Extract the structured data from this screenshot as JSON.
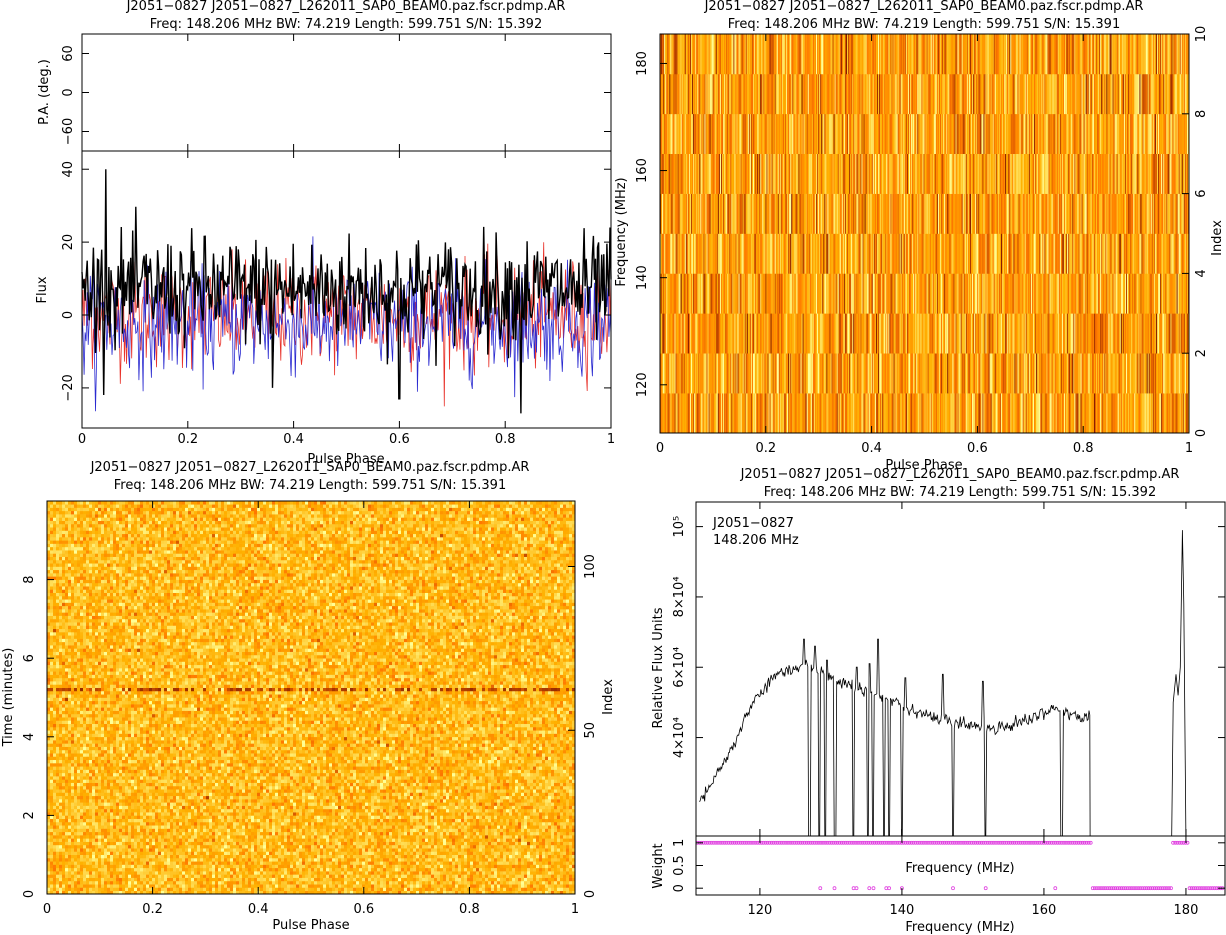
{
  "panels": {
    "profile": {
      "title1": "J2051−0827 J2051−0827_L262011_SAP0_BEAM0.paz.fscr.pdmp.AR",
      "title2": "Freq: 148.206 MHz BW: 74.219 Length: 599.751 S/N: 15.392",
      "pa_label": "P.A. (deg.)",
      "flux_label": "Flux",
      "x_label": "Pulse Phase"
    },
    "freq_phase": {
      "title1": "J2051−0827 J2051−0827_L262011_SAP0_BEAM0.paz.fscr.pdmp.AR",
      "title2": "Freq: 148.206 MHz BW: 74.219 Length: 599.751 S/N: 15.391",
      "y_label": "Frequency (MHz)",
      "y2_label": "Index",
      "x_label": "Pulse Phase"
    },
    "time_phase": {
      "title1": "J2051−0827 J2051−0827_L262011_SAP0_BEAM0.paz.fscr.pdmp.AR",
      "title2": "Freq: 148.206 MHz BW: 74.219 Length: 599.751 S/N: 15.391",
      "y_label": "Time (minutes)",
      "y2_label": "Index",
      "x_label": "Pulse Phase"
    },
    "bandpass": {
      "title1": "J2051−0827 J2051−0827_L262011_SAP0_BEAM0.paz.fscr.pdmp.AR",
      "title2": "Freq: 148.206 MHz BW: 74.219 Length: 599.751 S/N: 15.392",
      "legend1": "J2051−0827",
      "legend2": "148.206 MHz",
      "y_label": "Relative Flux Units",
      "w_label": "Weight",
      "x_label_inner": "Frequency (MHz)",
      "x_label": "Frequency (MHz)"
    }
  },
  "colors": {
    "stokes_i": "#000000",
    "stokes_l": "#e8322a",
    "stokes_v": "#2a2ad0",
    "weights": "#e040e0"
  },
  "chart_data": [
    {
      "type": "line",
      "title": "J2051−0827 J2051−0827_L262011_SAP0_BEAM0.paz.fscr.pdmp.AR",
      "subtitle": "Freq: 148.206 MHz BW: 74.219 Length: 599.751 S/N: 15.392",
      "xlabel": "Pulse Phase",
      "ylabel": "Flux",
      "xlim": [
        0,
        1
      ],
      "ylim": [
        -31,
        45
      ],
      "pa_ylim": [
        -90,
        90
      ],
      "x_ticks": [
        0,
        0.2,
        0.4,
        0.6,
        0.8,
        1
      ],
      "x_tick_labels": [
        "0",
        "0.2",
        "0.4",
        "0.6",
        "0.8",
        "1"
      ],
      "y_ticks": [
        -20,
        0,
        20,
        40
      ],
      "y_tick_labels": [
        "−20",
        "0",
        "20",
        "40"
      ],
      "pa_ticks": [
        -60,
        0,
        60
      ],
      "pa_tick_labels": [
        "−60",
        "0",
        "60"
      ],
      "n_bins": 512,
      "series": [
        {
          "key": "I",
          "color": "#000000",
          "mean": 7,
          "sd": 8,
          "peaks": [
            [
              0.045,
              40
            ],
            [
              0.83,
              -27
            ],
            [
              0.36,
              -20
            ],
            [
              0.6,
              -23
            ]
          ]
        },
        {
          "key": "L",
          "color": "#e8322a",
          "mean": 0,
          "sd": 8
        },
        {
          "key": "V",
          "color": "#2a2ad0",
          "mean": -2,
          "sd": 8
        }
      ]
    },
    {
      "type": "heatmap",
      "title": "J2051−0827 J2051−0827_L262011_SAP0_BEAM0.paz.fscr.pdmp.AR",
      "subtitle": "Freq: 148.206 MHz BW: 74.219 Length: 599.751 S/N: 15.391",
      "xlabel": "Pulse Phase",
      "ylabel": "Frequency (MHz)",
      "y2label": "Index",
      "xlim": [
        0,
        1
      ],
      "ylim": [
        111,
        185.5
      ],
      "y2lim": [
        0,
        10
      ],
      "n_phase_bins": 512,
      "n_channels": 10,
      "x_ticks": [
        0,
        0.2,
        0.4,
        0.6,
        0.8,
        1
      ],
      "x_tick_labels": [
        "0",
        "0.2",
        "0.4",
        "0.6",
        "0.8",
        "1"
      ],
      "y_ticks": [
        120,
        140,
        160,
        180
      ],
      "y_tick_labels": [
        "120",
        "140",
        "160",
        "180"
      ],
      "y2_ticks": [
        0,
        2,
        4,
        6,
        8,
        10
      ],
      "y2_tick_labels": [
        "0",
        "2",
        "4",
        "6",
        "8",
        "10"
      ]
    },
    {
      "type": "heatmap",
      "title": "J2051−0827 J2051−0827_L262011_SAP0_BEAM0.paz.fscr.pdmp.AR",
      "subtitle": "Freq: 148.206 MHz BW: 74.219 Length: 599.751 S/N: 15.391",
      "xlabel": "Pulse Phase",
      "ylabel": "Time (minutes)",
      "y2label": "Index",
      "xlim": [
        0,
        1
      ],
      "ylim": [
        0,
        10
      ],
      "y2lim": [
        0,
        120
      ],
      "n_phase_bins": 512,
      "n_subints": 120,
      "bright_row_minutes": 5.2,
      "x_ticks": [
        0,
        0.2,
        0.4,
        0.6,
        0.8,
        1
      ],
      "x_tick_labels": [
        "0",
        "0.2",
        "0.4",
        "0.6",
        "0.8",
        "1"
      ],
      "y_ticks": [
        0,
        2,
        4,
        6,
        8
      ],
      "y_tick_labels": [
        "0",
        "2",
        "4",
        "6",
        "8"
      ],
      "y2_ticks": [
        0,
        50,
        100
      ],
      "y2_tick_labels": [
        "0",
        "50",
        "100"
      ]
    },
    {
      "type": "line",
      "title": "J2051−0827 J2051−0827_L262011_SAP0_BEAM0.paz.fscr.pdmp.AR",
      "subtitle": "Freq: 148.206 MHz BW: 74.219 Length: 599.751 S/N: 15.392",
      "xlabel": "Frequency (MHz)",
      "ylabel": "Relative Flux Units",
      "weight_label": "Weight",
      "xlim": [
        111,
        185.5
      ],
      "ylim": [
        12000,
        107000
      ],
      "weight_ylim": [
        -0.15,
        1.15
      ],
      "x_ticks": [
        120,
        140,
        160,
        180
      ],
      "x_tick_labels": [
        "120",
        "140",
        "160",
        "180"
      ],
      "y_ticks": [
        40000,
        60000,
        80000,
        100000
      ],
      "y_tick_labels": [
        "4×10⁴",
        "6×10⁴",
        "8×10⁴",
        "10⁵"
      ],
      "weight_ticks": [
        0,
        0.5,
        1
      ],
      "weight_tick_labels": [
        "0",
        "0.5",
        "1"
      ],
      "bandpass_points": [
        [
          111.5,
          22000
        ],
        [
          113,
          26000
        ],
        [
          115,
          33000
        ],
        [
          117,
          41000
        ],
        [
          119,
          50000
        ],
        [
          121,
          55000
        ],
        [
          122.5,
          58000
        ],
        [
          124,
          59000
        ],
        [
          125.5,
          60000
        ],
        [
          126.5,
          61000
        ],
        [
          128,
          59500
        ],
        [
          130,
          57000
        ],
        [
          132,
          55000
        ],
        [
          134,
          54000
        ],
        [
          136,
          52500
        ],
        [
          138,
          51000
        ],
        [
          140,
          49500
        ],
        [
          142,
          47500
        ],
        [
          144,
          46000
        ],
        [
          146,
          45000
        ],
        [
          148,
          44000
        ],
        [
          150,
          43500
        ],
        [
          152,
          43000
        ],
        [
          154,
          43000
        ],
        [
          156,
          44000
        ],
        [
          158,
          45500
        ],
        [
          160,
          47000
        ],
        [
          161.5,
          48500
        ],
        [
          163,
          47000
        ],
        [
          165,
          45500
        ],
        [
          166.5,
          46000
        ],
        [
          178,
          55000
        ],
        [
          179,
          58000
        ],
        [
          179.6,
          99000
        ],
        [
          180,
          55000
        ]
      ],
      "spikes": [
        [
          126.2,
          68000
        ],
        [
          127.8,
          66000
        ],
        [
          129.4,
          62000
        ],
        [
          133.6,
          60000
        ],
        [
          135.5,
          61000
        ],
        [
          136.7,
          68000
        ],
        [
          140.5,
          57000
        ],
        [
          145.8,
          58000
        ],
        [
          151.4,
          56000
        ],
        [
          159.6,
          48000
        ]
      ],
      "zapped_channels": [
        127.0,
        128.4,
        129.2,
        130.6,
        133.2,
        135.2,
        135.9,
        137.5,
        138.2,
        140.0,
        147.2,
        151.8,
        162.5
      ],
      "weight_zero_ranges": [
        [
          166.7,
          178.0
        ],
        [
          180.3,
          185.5
        ]
      ],
      "weight_zero_points": [
        128.5,
        130.5,
        133.2,
        133.6,
        135.4,
        136.0,
        137.8,
        138.2,
        140.0,
        147.2,
        151.8,
        161.6
      ]
    }
  ]
}
